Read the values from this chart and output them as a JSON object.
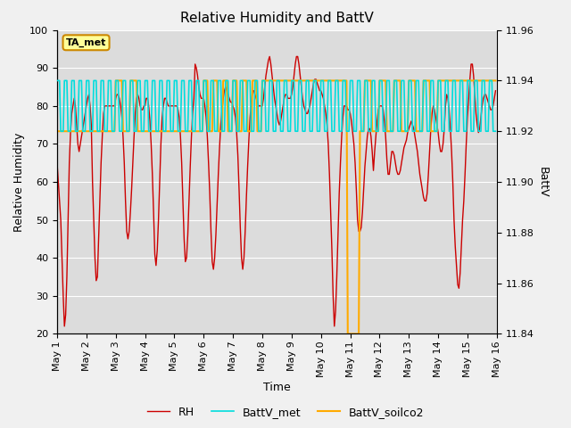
{
  "title": "Relative Humidity and BattV",
  "xlabel": "Time",
  "ylabel_left": "Relative Humidity",
  "ylabel_right": "BattV",
  "xlim": [
    0,
    360
  ],
  "ylim_left": [
    20,
    100
  ],
  "ylim_right": [
    11.84,
    11.96
  ],
  "xtick_labels": [
    "May 1",
    "May 2",
    "May 3",
    "May 4",
    "May 5",
    "May 6",
    "May 7",
    "May 8",
    "May 9",
    "May 10",
    "May 11",
    "May 12",
    "May 13",
    "May 14",
    "May 15",
    "May 16"
  ],
  "xtick_positions": [
    0,
    24,
    48,
    72,
    96,
    120,
    144,
    168,
    192,
    216,
    240,
    264,
    288,
    312,
    336,
    360
  ],
  "ytick_left": [
    20,
    30,
    40,
    50,
    60,
    70,
    80,
    90,
    100
  ],
  "ytick_right": [
    11.84,
    11.86,
    11.88,
    11.9,
    11.92,
    11.94,
    11.96
  ],
  "color_rh": "#cc0000",
  "color_batt_met": "#00dddd",
  "color_batt_soilco2": "#ffaa00",
  "bg_color": "#dcdcdc",
  "fig_color": "#f0f0f0",
  "annotation_text": "TA_met",
  "annotation_box_color": "#ffff99",
  "annotation_border_color": "#cc8800",
  "rh_values": [
    65,
    60,
    55,
    50,
    40,
    30,
    22,
    25,
    35,
    50,
    65,
    73,
    78,
    80,
    82,
    80,
    75,
    70,
    68,
    70,
    72,
    74,
    76,
    78,
    80,
    82,
    83,
    80,
    75,
    60,
    50,
    40,
    34,
    35,
    45,
    55,
    65,
    72,
    78,
    80,
    80,
    80,
    80,
    80,
    80,
    80,
    80,
    80,
    82,
    83,
    83,
    82,
    80,
    77,
    72,
    65,
    55,
    47,
    45,
    47,
    52,
    58,
    65,
    72,
    78,
    82,
    83,
    82,
    80,
    79,
    79,
    80,
    80,
    82,
    82,
    80,
    76,
    70,
    62,
    52,
    41,
    38,
    42,
    50,
    60,
    70,
    77,
    80,
    82,
    82,
    81,
    80,
    80,
    80,
    80,
    80,
    80,
    80,
    80,
    79,
    77,
    72,
    65,
    55,
    45,
    39,
    40,
    46,
    55,
    64,
    72,
    78,
    82,
    91,
    90,
    88,
    85,
    83,
    82,
    82,
    82,
    80,
    77,
    72,
    65,
    57,
    47,
    39,
    37,
    40,
    46,
    54,
    62,
    69,
    75,
    79,
    82,
    84,
    85,
    84,
    83,
    82,
    81,
    81,
    80,
    79,
    77,
    73,
    67,
    58,
    48,
    40,
    37,
    40,
    47,
    56,
    64,
    71,
    77,
    81,
    84,
    84,
    83,
    82,
    81,
    80,
    80,
    80,
    80,
    82,
    85,
    88,
    90,
    92,
    93,
    91,
    88,
    85,
    82,
    80,
    78,
    76,
    75,
    76,
    78,
    80,
    82,
    83,
    83,
    82,
    82,
    82,
    83,
    85,
    88,
    91,
    93,
    93,
    91,
    88,
    85,
    82,
    80,
    79,
    78,
    78,
    79,
    80,
    82,
    84,
    86,
    87,
    87,
    86,
    85,
    84,
    84,
    83,
    82,
    80,
    78,
    75,
    70,
    62,
    52,
    42,
    30,
    22,
    26,
    35,
    46,
    57,
    65,
    72,
    77,
    80,
    80,
    80,
    79,
    79,
    78,
    76,
    73,
    70,
    65,
    58,
    50,
    47,
    47,
    48,
    52,
    58,
    64,
    68,
    72,
    74,
    74,
    72,
    68,
    63,
    68,
    72,
    76,
    79,
    80,
    80,
    80,
    79,
    76,
    72,
    66,
    62,
    62,
    65,
    68,
    68,
    67,
    65,
    63,
    62,
    62,
    63,
    65,
    67,
    69,
    70,
    71,
    73,
    74,
    75,
    76,
    75,
    74,
    72,
    70,
    68,
    65,
    62,
    60,
    58,
    56,
    55,
    55,
    57,
    62,
    68,
    74,
    78,
    80,
    79,
    77,
    75,
    73,
    70,
    68,
    68,
    70,
    74,
    80,
    83,
    82,
    79,
    74,
    68,
    60,
    50,
    43,
    38,
    33,
    32,
    36,
    43,
    50,
    55,
    62,
    70,
    77,
    82,
    87,
    91,
    91,
    88,
    83,
    78,
    75,
    73,
    74,
    77,
    80,
    82,
    83,
    83,
    82,
    81,
    80,
    79,
    79,
    80,
    82,
    84
  ]
}
